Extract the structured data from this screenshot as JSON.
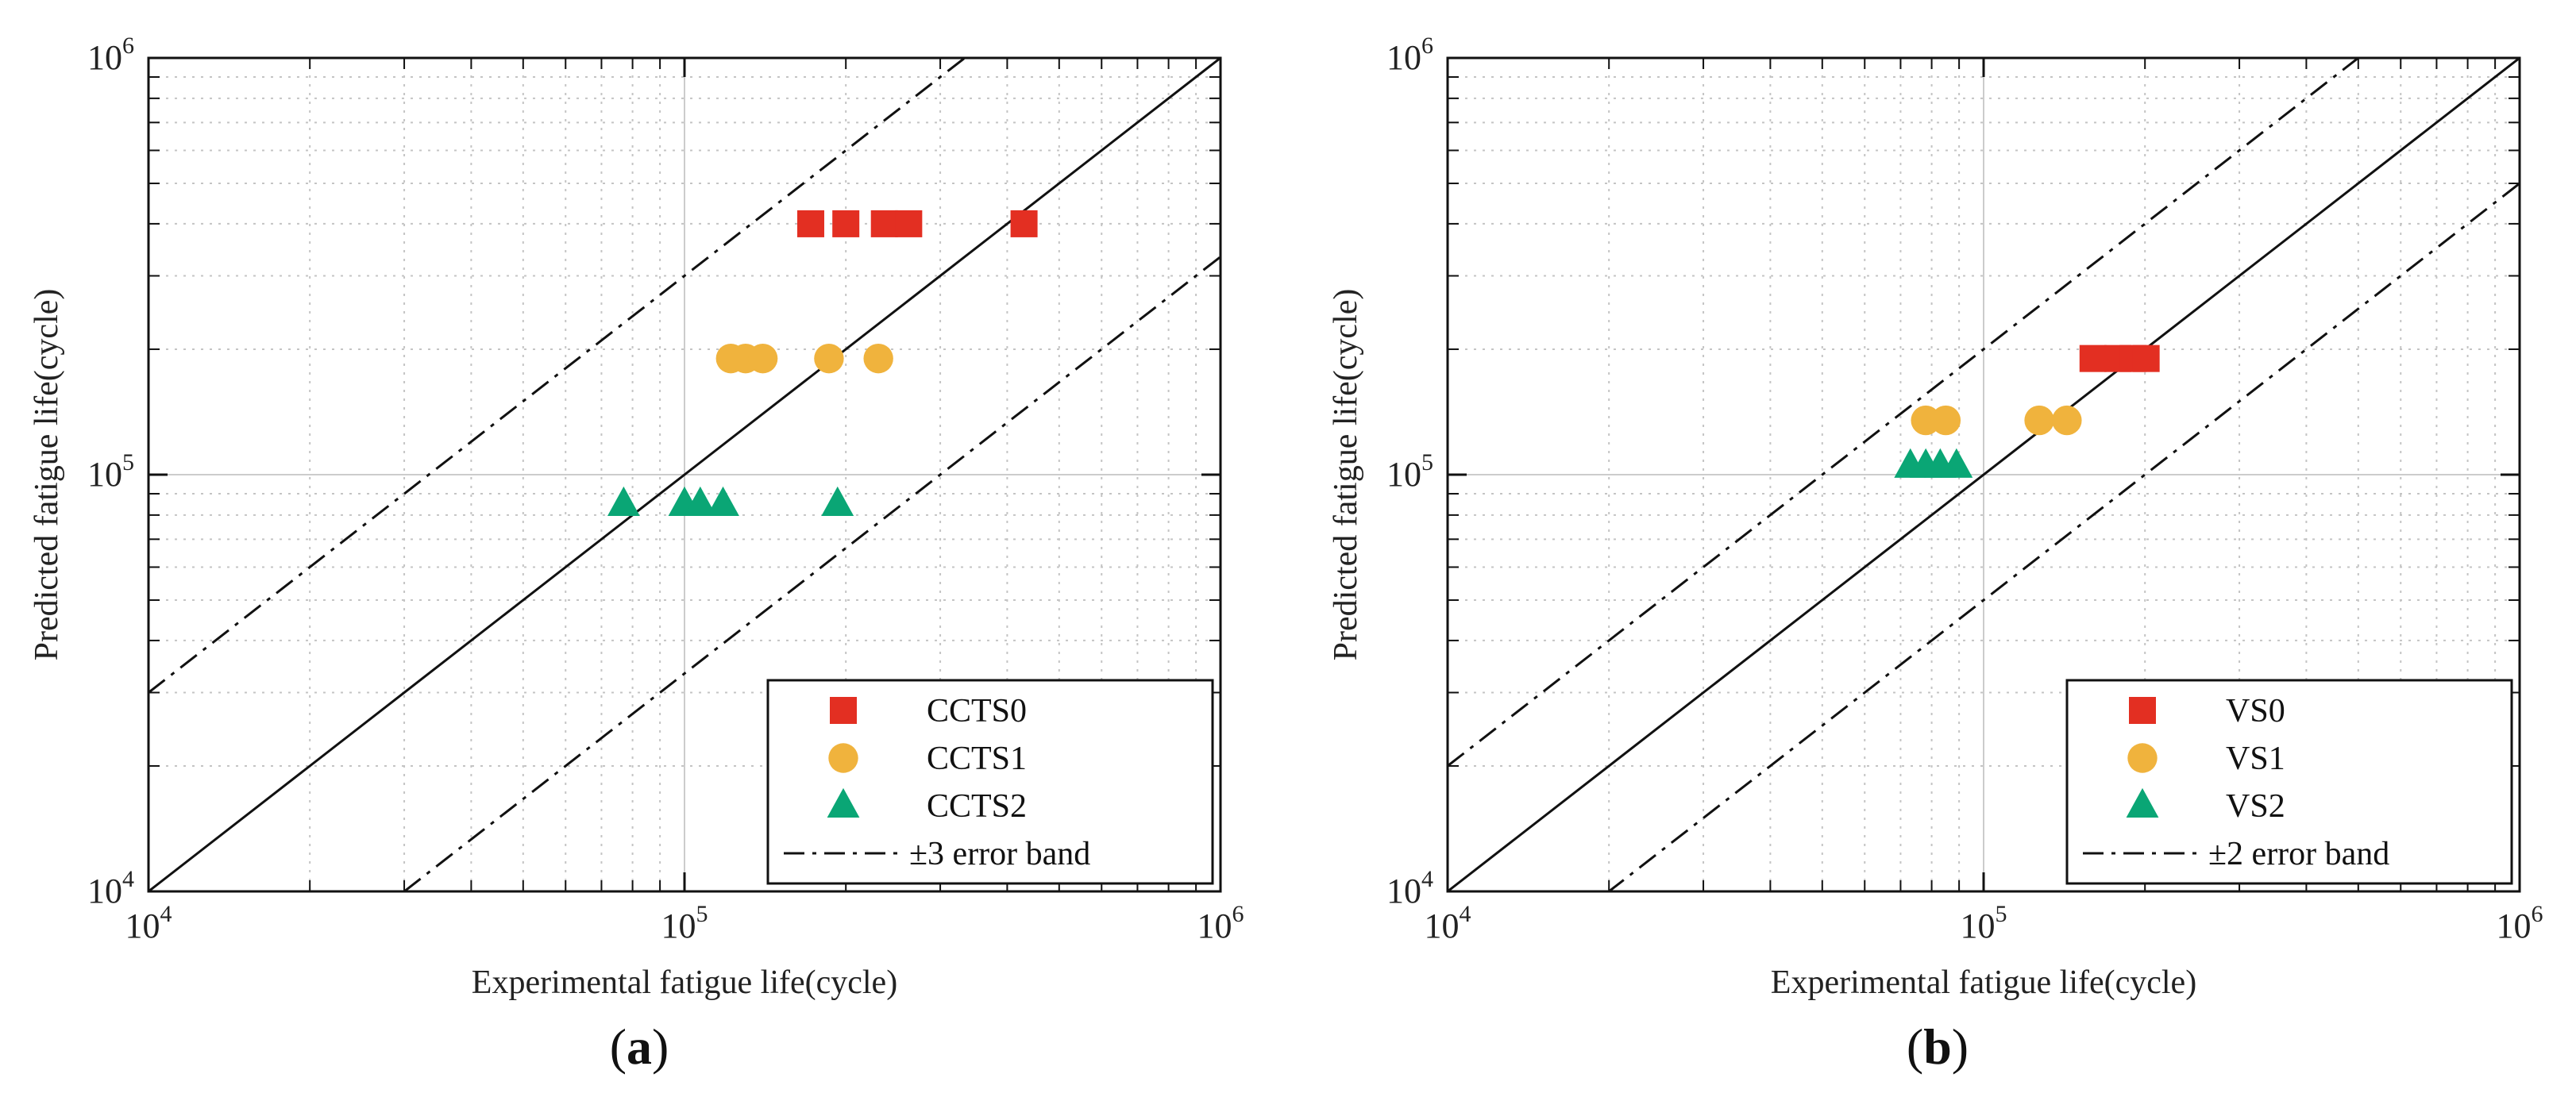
{
  "colors": {
    "series0": "#e32f22",
    "series1": "#f0b33d",
    "series2": "#0aa675",
    "line": "#111111",
    "grid_major": "#cccccc",
    "grid_minor": "#c4c4c4"
  },
  "chart_data": [
    {
      "type": "scatter",
      "panel_label": "(a)",
      "panel_letter": "a",
      "xlabel": "Experimental fatigue life(cycle)",
      "ylabel": "Predicted fatigue life(cycle)",
      "xscale": "log",
      "yscale": "log",
      "xlim": [
        10000,
        1000000
      ],
      "ylim": [
        10000,
        1000000
      ],
      "tick_labels": [
        {
          "value": 10000,
          "base": "10",
          "exp": "4"
        },
        {
          "value": 100000,
          "base": "10",
          "exp": "5"
        },
        {
          "value": 1000000,
          "base": "10",
          "exp": "6"
        }
      ],
      "error_factor": 3,
      "series": [
        {
          "name": "CCTS0",
          "marker": "square",
          "color": "#e32f22",
          "points": [
            [
              172000,
              400000
            ],
            [
              200000,
              400000
            ],
            [
              236000,
              400000
            ],
            [
              262000,
              400000
            ],
            [
              430000,
              400000
            ]
          ]
        },
        {
          "name": "CCTS1",
          "marker": "circle",
          "color": "#f0b33d",
          "points": [
            [
              122000,
              190000
            ],
            [
              130000,
              190000
            ],
            [
              140000,
              190000
            ],
            [
              186000,
              190000
            ],
            [
              230000,
              190000
            ]
          ]
        },
        {
          "name": "CCTS2",
          "marker": "triangle",
          "color": "#0aa675",
          "points": [
            [
              77000,
              85000
            ],
            [
              100000,
              85000
            ],
            [
              107000,
              85000
            ],
            [
              118000,
              85000
            ],
            [
              193000,
              85000
            ]
          ]
        }
      ],
      "legend": {
        "position": "bottom-right",
        "items": [
          "CCTS0",
          "CCTS1",
          "CCTS2"
        ],
        "band_label": "±3 error band"
      }
    },
    {
      "type": "scatter",
      "panel_label": "(b)",
      "panel_letter": "b",
      "xlabel": "Experimental fatigue life(cycle)",
      "ylabel": "Predicted fatigue life(cycle)",
      "xscale": "log",
      "yscale": "log",
      "xlim": [
        10000,
        1000000
      ],
      "ylim": [
        10000,
        1000000
      ],
      "tick_labels": [
        {
          "value": 10000,
          "base": "10",
          "exp": "4"
        },
        {
          "value": 100000,
          "base": "10",
          "exp": "5"
        },
        {
          "value": 1000000,
          "base": "10",
          "exp": "6"
        }
      ],
      "error_factor": 2,
      "series": [
        {
          "name": "VS0",
          "marker": "square",
          "color": "#e32f22",
          "points": [
            [
              160000,
              190000
            ],
            [
              178000,
              190000
            ],
            [
              190000,
              190000
            ],
            [
              201000,
              190000
            ]
          ]
        },
        {
          "name": "VS1",
          "marker": "circle",
          "color": "#f0b33d",
          "points": [
            [
              78000,
              135000
            ],
            [
              85000,
              135000
            ],
            [
              127000,
              135000
            ],
            [
              143000,
              135000
            ]
          ]
        },
        {
          "name": "VS2",
          "marker": "triangle",
          "color": "#0aa675",
          "points": [
            [
              73000,
              105000
            ],
            [
              78000,
              105000
            ],
            [
              83000,
              105000
            ],
            [
              89000,
              105000
            ]
          ]
        }
      ],
      "legend": {
        "position": "bottom-right",
        "items": [
          "VS0",
          "VS1",
          "VS2"
        ],
        "band_label": "±2 error band"
      }
    }
  ]
}
